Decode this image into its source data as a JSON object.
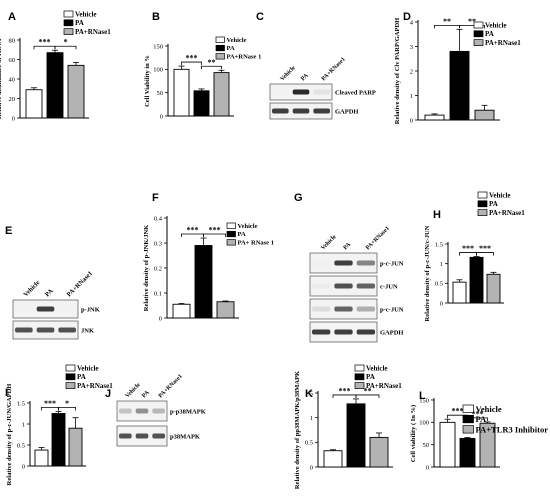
{
  "chart_data": [
    {
      "panel": "A",
      "type": "bar",
      "ylabel": "Relative abundance of rRNA",
      "ylim": [
        0,
        80
      ],
      "yticks": [
        0,
        20,
        40,
        60,
        80
      ],
      "categories": [
        "Vehicle",
        "PA",
        "PA+RNase1"
      ],
      "values": [
        29,
        67,
        54
      ],
      "errors": [
        2,
        2.5,
        3
      ],
      "colors": [
        "#ffffff",
        "#000000",
        "#b3b3b3"
      ],
      "legend": [
        "Vehicle",
        "PA",
        "PA+RNase1"
      ],
      "sig": [
        {
          "from": 0,
          "to": 1,
          "label": "***"
        },
        {
          "from": 1,
          "to": 2,
          "label": "*"
        }
      ]
    },
    {
      "panel": "B",
      "type": "bar",
      "ylabel": "Cell Viability in %",
      "ylim": [
        0,
        150
      ],
      "yticks": [
        0,
        50,
        100,
        150
      ],
      "categories": [
        "Vehicle",
        "PA",
        "PA+RNase 1"
      ],
      "values": [
        100,
        54,
        93
      ],
      "errors": [
        7,
        4,
        5
      ],
      "colors": [
        "#ffffff",
        "#000000",
        "#b3b3b3"
      ],
      "legend": [
        "Vehicle",
        "PA",
        "PA+RNase 1"
      ],
      "sig": [
        {
          "from": 0,
          "to": 1,
          "label": "***"
        },
        {
          "from": 1,
          "to": 2,
          "label": "**"
        }
      ]
    },
    {
      "panel": "D",
      "type": "bar",
      "ylabel": "Relative density of Clv PARP/GAPDH",
      "ylim": [
        0,
        4
      ],
      "yticks": [
        0,
        1,
        2,
        3,
        4
      ],
      "categories": [
        "Vehicle",
        "PA",
        "PA+RNase1"
      ],
      "values": [
        0.2,
        2.8,
        0.4
      ],
      "errors": [
        0.05,
        0.9,
        0.2
      ],
      "colors": [
        "#ffffff",
        "#000000",
        "#b3b3b3"
      ],
      "legend": [
        "Vehicle",
        "PA",
        "PA+RNase1"
      ],
      "sig": [
        {
          "from": 0,
          "to": 1,
          "label": "**"
        },
        {
          "from": 1,
          "to": 2,
          "label": "**"
        }
      ]
    },
    {
      "panel": "F",
      "type": "bar",
      "ylabel": "Relative density of p-JNK/JNK",
      "ylim": [
        0,
        0.4
      ],
      "yticks": [
        0,
        0.1,
        0.2,
        0.3,
        0.4
      ],
      "categories": [
        "Vehicle",
        "PA",
        "PA+ RNase 1"
      ],
      "values": [
        0.055,
        0.29,
        0.065
      ],
      "errors": [
        0.003,
        0.03,
        0.003
      ],
      "colors": [
        "#ffffff",
        "#000000",
        "#b3b3b3"
      ],
      "legend": [
        "Vehicle",
        "PA",
        "PA+ RNase 1"
      ],
      "sig": [
        {
          "from": 0,
          "to": 1,
          "label": "***"
        },
        {
          "from": 1,
          "to": 2,
          "label": "***"
        }
      ]
    },
    {
      "panel": "H",
      "type": "bar",
      "ylabel": "Relative density of p-c-JUN/c-JUN",
      "ylim": [
        0,
        1.5
      ],
      "yticks": [
        0,
        0.5,
        1,
        1.5
      ],
      "categories": [
        "Vehicle",
        "PA",
        "PA+RNase1"
      ],
      "values": [
        0.53,
        1.16,
        0.73
      ],
      "errors": [
        0.06,
        0.02,
        0.05
      ],
      "colors": [
        "#ffffff",
        "#000000",
        "#b3b3b3"
      ],
      "legend": [
        "Vehicle",
        "PA",
        "PA+RNase1"
      ],
      "sig": [
        {
          "from": 0,
          "to": 1,
          "label": "***"
        },
        {
          "from": 1,
          "to": 2,
          "label": "***"
        }
      ]
    },
    {
      "panel": "I",
      "type": "bar",
      "ylabel": "Relative density of p-c-JUN/GAPDH",
      "ylim": [
        0,
        1.5
      ],
      "yticks": [
        0,
        0.5,
        1,
        1.5
      ],
      "categories": [
        "Vehicle",
        "PA",
        "PA+RNase1"
      ],
      "values": [
        0.38,
        1.25,
        0.9
      ],
      "errors": [
        0.06,
        0.05,
        0.25
      ],
      "colors": [
        "#ffffff",
        "#000000",
        "#b3b3b3"
      ],
      "legend": [
        "Vehicle",
        "PA",
        "PA+RNase1"
      ],
      "sig": [
        {
          "from": 0,
          "to": 1,
          "label": "***"
        },
        {
          "from": 1,
          "to": 2,
          "label": "*"
        }
      ]
    },
    {
      "panel": "K",
      "type": "bar",
      "ylabel": "Relative density of pp38MAPK/p38MAPK",
      "ylim": [
        0,
        1.5
      ],
      "yticks": [
        0,
        0.5,
        1,
        1.5
      ],
      "categories": [
        "Vehicle",
        "PA",
        "PA+RNase1"
      ],
      "values": [
        0.33,
        1.28,
        0.6
      ],
      "errors": [
        0.02,
        0.1,
        0.09
      ],
      "colors": [
        "#ffffff",
        "#000000",
        "#b3b3b3"
      ],
      "legend": [
        "Vehicle",
        "PA",
        "PA+RNase1"
      ],
      "sig": [
        {
          "from": 0,
          "to": 1,
          "label": "***"
        },
        {
          "from": 1,
          "to": 2,
          "label": "**"
        }
      ]
    },
    {
      "panel": "L",
      "type": "bar",
      "ylabel": "Cell viability ( In %)",
      "ylim": [
        0,
        150
      ],
      "yticks": [
        0,
        50,
        100,
        150
      ],
      "categories": [
        "Vehicle",
        "PA",
        "PA+TLR3 Inhibitor"
      ],
      "values": [
        100,
        64,
        98
      ],
      "errors": [
        7,
        2,
        3
      ],
      "colors": [
        "#ffffff",
        "#000000",
        "#b3b3b3"
      ],
      "legend": [
        "Vehicle",
        "PA",
        "PA+TLR3 Inhibitor"
      ],
      "sig": [
        {
          "from": 0,
          "to": 1,
          "label": "***"
        },
        {
          "from": 1,
          "to": 2,
          "label": "***"
        }
      ]
    }
  ],
  "blots": [
    {
      "panel": "C",
      "lanes": [
        "Vehicle",
        "PA",
        "PA+RNase1"
      ],
      "rows": [
        {
          "label": "Cleaved PARP",
          "intensity": [
            0.05,
            0.95,
            0.25
          ]
        },
        {
          "label": "GAPDH",
          "intensity": [
            0.9,
            0.9,
            0.9
          ]
        }
      ]
    },
    {
      "panel": "E",
      "lanes": [
        "Vehicle",
        "PA",
        "PA+RNase1"
      ],
      "rows": [
        {
          "label": "p-JNK",
          "intensity": [
            0.05,
            0.9,
            0.05
          ]
        },
        {
          "label": "JNK",
          "intensity": [
            0.85,
            0.85,
            0.85
          ]
        }
      ]
    },
    {
      "panel": "G",
      "lanes": [
        "Vehicle",
        "PA",
        "PA+RNase1"
      ],
      "rows": [
        {
          "label": "p-c-JUN",
          "intensity": [
            0.1,
            0.9,
            0.7
          ]
        },
        {
          "label": "c-JUN",
          "intensity": [
            0.15,
            0.85,
            0.8
          ]
        },
        {
          "label": "p-c-JUN",
          "intensity": [
            0.3,
            0.8,
            0.55
          ]
        },
        {
          "label": "GAPDH",
          "intensity": [
            0.9,
            0.9,
            0.9
          ]
        }
      ]
    },
    {
      "panel": "J",
      "lanes": [
        "Vehicle",
        "PA",
        "PA+RNase1"
      ],
      "rows": [
        {
          "label": "p-p38MAPK",
          "intensity": [
            0.45,
            0.65,
            0.5
          ]
        },
        {
          "label": "p38MAPK",
          "intensity": [
            0.85,
            0.85,
            0.85
          ]
        }
      ]
    }
  ]
}
